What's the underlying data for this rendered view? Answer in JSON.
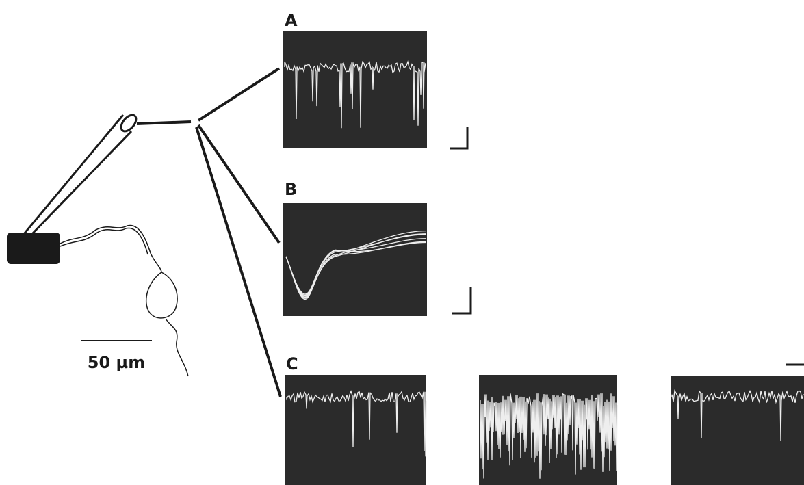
{
  "panels": [
    {
      "label": "A"
    },
    {
      "label": "B"
    },
    {
      "label": "C"
    }
  ],
  "scale_bar": {
    "label": "50 µm"
  }
}
